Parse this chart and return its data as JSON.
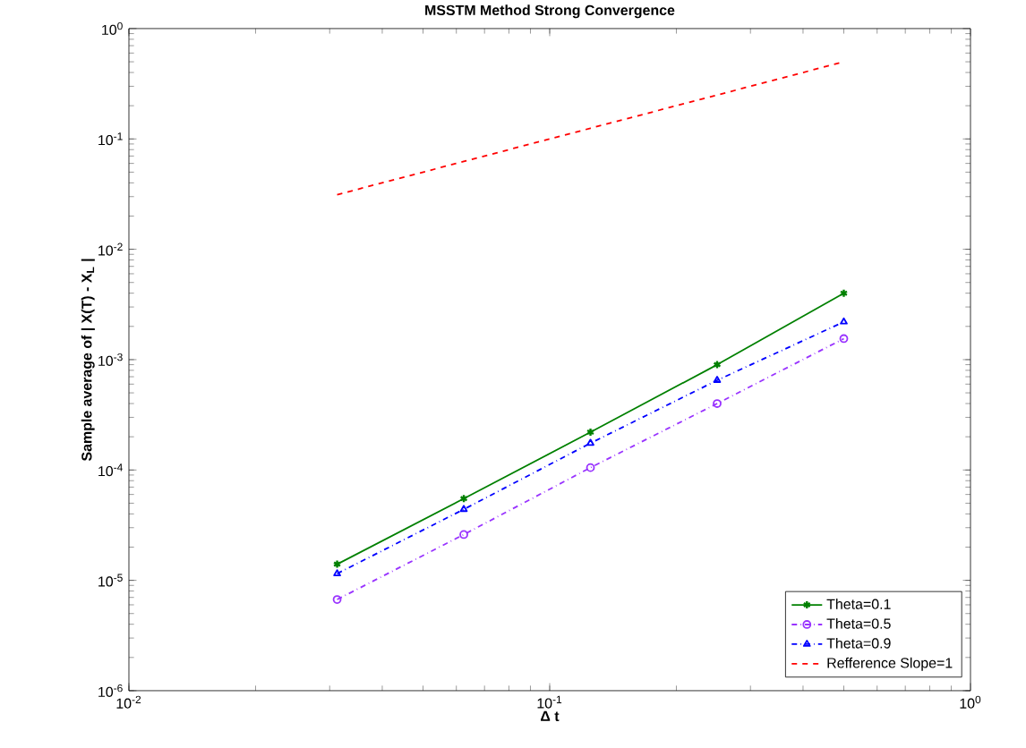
{
  "chart_data": {
    "type": "line",
    "title": "MSSTM Method Strong Convergence",
    "xlabel": "Δ t",
    "ylabel": "Sample average of | X(T) - X$_{L}$ |",
    "x": [
      0.03125,
      0.0625,
      0.125,
      0.25,
      0.5
    ],
    "series": [
      {
        "name": "Theta=0.1",
        "color": "#008000",
        "marker": "cross",
        "line_style": "solid",
        "values": [
          1.4e-05,
          5.5e-05,
          0.00022,
          0.0009,
          0.004
        ]
      },
      {
        "name": "Theta=0.5",
        "color": "#9933ff",
        "marker": "circle",
        "line_style": "dashdot",
        "values": [
          6.7e-06,
          2.6e-05,
          0.000105,
          0.0004,
          0.00155
        ]
      },
      {
        "name": "Theta=0.9",
        "color": "#0000ff",
        "marker": "triangle",
        "line_style": "dashdot",
        "values": [
          1.15e-05,
          4.4e-05,
          0.000175,
          0.00065,
          0.0022
        ]
      },
      {
        "name": "Refference Slope=1",
        "color": "#ff0000",
        "marker": "none",
        "line_style": "dashed",
        "values": [
          0.03125,
          0.0625,
          0.125,
          0.25,
          0.5
        ]
      }
    ],
    "log": "xy",
    "xlim": [
      0.01,
      1
    ],
    "ylim": [
      1e-06,
      1
    ],
    "xticks": [
      {
        "value": 0.01,
        "label": "10$^{-2}$"
      },
      {
        "value": 0.1,
        "label": "10$^{-1}$"
      },
      {
        "value": 1,
        "label": "10$^{0}$"
      }
    ],
    "yticks": [
      {
        "value": 1e-06,
        "label": "10$^{-6}$"
      },
      {
        "value": 1e-05,
        "label": "10$^{-5}$"
      },
      {
        "value": 0.0001,
        "label": "10$^{-4}$"
      },
      {
        "value": 0.001,
        "label": "10$^{-3}$"
      },
      {
        "value": 0.01,
        "label": "10$^{-2}$"
      },
      {
        "value": 0.1,
        "label": "10$^{-1}$"
      },
      {
        "value": 1,
        "label": "10$^{0}$"
      }
    ],
    "grid": false,
    "legend": "bottom right"
  }
}
